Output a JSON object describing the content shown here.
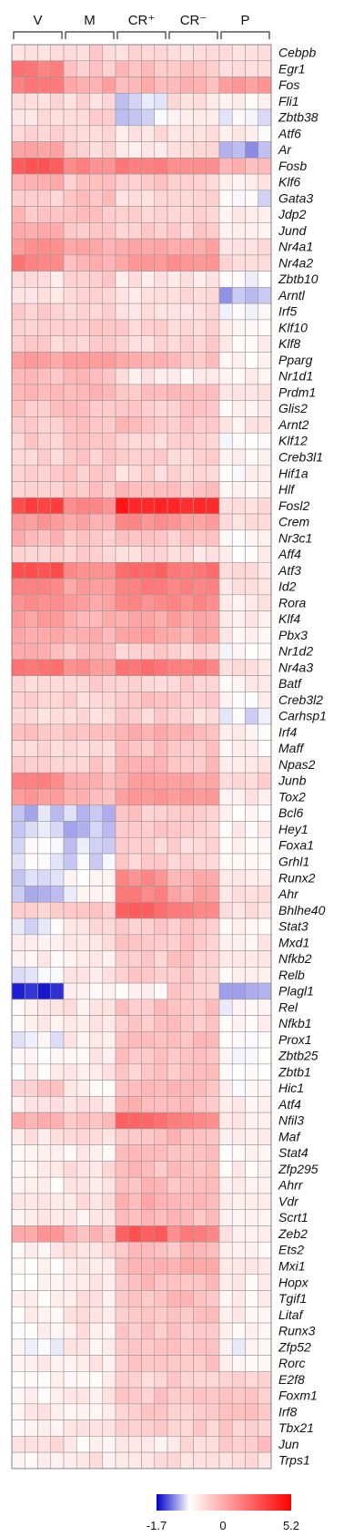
{
  "chart_data": {
    "type": "heatmap",
    "title": "",
    "groups": [
      {
        "label": "V",
        "columns": 4
      },
      {
        "label": "M",
        "columns": 4
      },
      {
        "label": "CR⁺",
        "columns": 4
      },
      {
        "label": "CR⁻",
        "columns": 4
      },
      {
        "label": "P",
        "columns": 4
      }
    ],
    "rows": [
      "Cebpb",
      "Egr1",
      "Fos",
      "Fli1",
      "Zbtb38",
      "Atf6",
      "Ar",
      "Fosb",
      "Klf6",
      "Gata3",
      "Jdp2",
      "Jund",
      "Nr4a1",
      "Nr4a2",
      "Zbtb10",
      "Arntl",
      "Irf5",
      "Klf10",
      "Klf8",
      "Pparg",
      "Nr1d1",
      "Prdm1",
      "Glis2",
      "Arnt2",
      "Klf12",
      "Creb3l1",
      "Hif1a",
      "Hlf",
      "Fosl2",
      "Crem",
      "Nr3c1",
      "Aff4",
      "Atf3",
      "Id2",
      "Rora",
      "Klf4",
      "Pbx3",
      "Nr1d2",
      "Nr4a3",
      "Batf",
      "Creb3l2",
      "Carhsp1",
      "Irf4",
      "Maff",
      "Npas2",
      "Junb",
      "Tox2",
      "Bcl6",
      "Hey1",
      "Foxa1",
      "Grhl1",
      "Runx2",
      "Ahr",
      "Bhlhe40",
      "Stat3",
      "Mxd1",
      "Nfkb2",
      "Relb",
      "Plagl1",
      "Rel",
      "Nfkb1",
      "Prox1",
      "Zbtb25",
      "Zbtb1",
      "Hic1",
      "Atf4",
      "Nfil3",
      "Maf",
      "Stat4",
      "Zfp295",
      "Ahrr",
      "Vdr",
      "Scrt1",
      "Zeb2",
      "Ets2",
      "Mxi1",
      "Hopx",
      "Tgif1",
      "Litaf",
      "Runx3",
      "Zfp52",
      "Rorc",
      "E2f8",
      "Foxm1",
      "Irf8",
      "Tbx21",
      "Jun",
      "Trps1"
    ],
    "group_row_means": {
      "V": [
        0.8,
        2.7,
        2.8,
        0.7,
        0.6,
        0.8,
        1.8,
        3.5,
        1.6,
        1.0,
        1.3,
        1.6,
        2.2,
        2.6,
        0.6,
        0.6,
        0.9,
        1.0,
        0.9,
        2.0,
        1.3,
        1.4,
        1.2,
        1.1,
        1.0,
        0.9,
        0.9,
        1.1,
        3.8,
        2.1,
        1.5,
        0.8,
        3.7,
        2.6,
        2.4,
        2.0,
        1.6,
        1.5,
        2.9,
        0.8,
        0.9,
        0.6,
        1.3,
        0.9,
        1.0,
        2.4,
        2.1,
        -0.4,
        -0.2,
        -0.1,
        -0.1,
        -0.2,
        -0.5,
        1.0,
        -0.1,
        0.2,
        0.3,
        -0.1,
        -1.4,
        0.3,
        0.3,
        0.0,
        0.0,
        0.2,
        1.1,
        0.5,
        1.7,
        0.5,
        0.2,
        0.3,
        0.3,
        0.5,
        0.4,
        2.0,
        0.3,
        0.1,
        0.2,
        0.2,
        0.2,
        0.2,
        0.1,
        0.3,
        0.2,
        0.3,
        0.4,
        0.2,
        0.6,
        0.3
      ],
      "M": [
        0.9,
        1.1,
        1.8,
        0.8,
        0.9,
        0.9,
        0.8,
        2.4,
        1.2,
        1.2,
        1.2,
        1.0,
        1.7,
        1.5,
        1.0,
        0.8,
        0.9,
        1.0,
        1.0,
        1.8,
        1.3,
        1.4,
        1.2,
        1.3,
        1.1,
        1.1,
        1.0,
        1.2,
        2.3,
        1.7,
        1.2,
        0.9,
        2.2,
        2.0,
        1.9,
        1.6,
        1.5,
        1.2,
        2.2,
        0.9,
        0.9,
        0.7,
        1.2,
        0.9,
        1.0,
        1.5,
        1.5,
        -0.3,
        -0.5,
        -0.3,
        -0.2,
        0.1,
        0.1,
        1.2,
        0.6,
        0.5,
        0.5,
        0.5,
        0.2,
        0.5,
        0.5,
        0.4,
        0.4,
        0.5,
        0.3,
        0.5,
        1.2,
        0.6,
        0.3,
        0.6,
        0.5,
        0.6,
        0.5,
        1.4,
        0.6,
        0.5,
        0.5,
        0.5,
        0.6,
        0.5,
        0.4,
        0.5,
        0.3,
        0.5,
        0.4,
        0.4,
        0.3,
        0.5
      ],
      "CR⁺": [
        0.7,
        1.3,
        1.5,
        -0.3,
        -0.2,
        0.6,
        0.4,
        2.6,
        1.0,
        0.8,
        0.9,
        1.0,
        1.7,
        2.0,
        0.5,
        0.5,
        0.6,
        0.9,
        0.8,
        1.6,
        0.5,
        1.3,
        1.1,
        1.3,
        0.8,
        0.9,
        0.8,
        1.3,
        4.6,
        2.3,
        1.2,
        0.7,
        3.0,
        2.6,
        2.3,
        1.8,
        1.8,
        1.0,
        2.8,
        0.8,
        1.3,
        0.9,
        1.6,
        1.2,
        1.4,
        1.8,
        2.0,
        1.1,
        1.1,
        0.9,
        1.0,
        2.3,
        2.6,
        3.1,
        1.1,
        1.3,
        1.0,
        1.0,
        0.3,
        1.2,
        1.1,
        1.2,
        1.2,
        1.1,
        1.3,
        1.5,
        3.1,
        1.3,
        1.2,
        1.3,
        1.4,
        1.6,
        1.5,
        3.4,
        1.3,
        1.4,
        1.3,
        1.3,
        1.2,
        1.2,
        1.1,
        1.2,
        0.9,
        1.1,
        1.0,
        0.9,
        0.3,
        0.5
      ],
      "CR⁻": [
        0.7,
        1.2,
        1.4,
        0.6,
        0.4,
        0.6,
        0.8,
        2.5,
        1.0,
        1.0,
        1.0,
        1.0,
        1.9,
        2.3,
        0.6,
        0.6,
        0.7,
        0.9,
        0.9,
        1.3,
        0.4,
        1.3,
        1.1,
        1.2,
        0.9,
        0.9,
        0.8,
        1.2,
        4.3,
        2.1,
        1.1,
        0.7,
        2.9,
        2.5,
        2.3,
        1.8,
        1.7,
        1.0,
        2.7,
        0.9,
        1.2,
        0.8,
        1.4,
        1.1,
        1.3,
        1.9,
        2.0,
        0.9,
        1.0,
        0.9,
        1.0,
        1.6,
        1.8,
        2.6,
        1.1,
        1.1,
        1.1,
        1.1,
        1.1,
        1.2,
        1.2,
        1.3,
        1.3,
        1.2,
        1.3,
        1.3,
        2.4,
        1.4,
        1.3,
        1.4,
        1.3,
        1.4,
        1.3,
        2.5,
        1.3,
        1.6,
        1.3,
        1.3,
        1.3,
        1.2,
        1.1,
        1.2,
        1.0,
        1.2,
        1.1,
        1.0,
        0.7,
        0.6
      ],
      "P": [
        0.5,
        0.7,
        2.0,
        0.2,
        -0.1,
        0.3,
        -0.6,
        1.5,
        0.4,
        -0.1,
        0.3,
        0.4,
        0.6,
        0.7,
        -0.1,
        -0.6,
        0.1,
        0.2,
        0.3,
        0.2,
        0.2,
        0.4,
        0.2,
        0.4,
        0.1,
        0.3,
        0.2,
        0.3,
        0.7,
        0.6,
        0.2,
        0.2,
        0.6,
        0.5,
        0.4,
        0.5,
        0.4,
        0.0,
        0.6,
        0.3,
        0.2,
        -0.1,
        0.3,
        0.2,
        0.5,
        0.9,
        0.4,
        0.2,
        0.3,
        0.2,
        0.2,
        0.4,
        0.5,
        0.6,
        0.3,
        0.4,
        0.3,
        0.3,
        -0.5,
        0.0,
        0.3,
        0.1,
        0.0,
        -0.1,
        0.2,
        0.3,
        0.5,
        0.3,
        0.2,
        0.3,
        0.4,
        0.3,
        0.2,
        0.5,
        0.3,
        0.3,
        0.3,
        0.3,
        0.3,
        0.3,
        0.1,
        0.3,
        1.0,
        1.1,
        1.2,
        1.0,
        1.2,
        0.6
      ]
    },
    "colorbar": {
      "min": -1.7,
      "mid": 0,
      "max": 5.2,
      "ticks": [
        "-1.7",
        "0",
        "5.2"
      ]
    },
    "colors": {
      "low": "#0000c8",
      "mid": "#ffffff",
      "high": "#ff0000",
      "grid": "#9a9a9a"
    }
  }
}
